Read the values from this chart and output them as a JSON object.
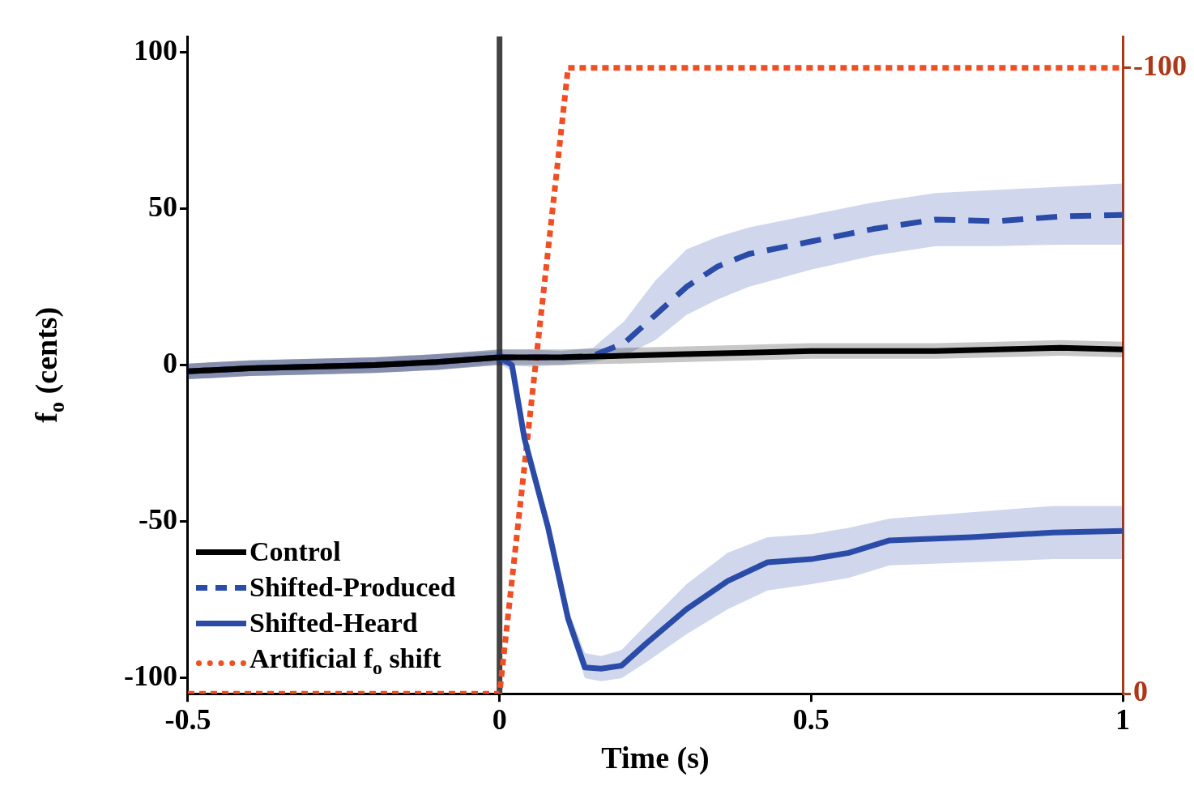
{
  "chart_data": {
    "type": "line",
    "xlabel": "Time (s)",
    "ylabel": "f$_{o}$ (cents)",
    "xlim": [
      -0.5,
      1
    ],
    "xticks": [
      -0.5,
      0,
      0.5,
      1
    ],
    "ylim": [
      -105,
      105
    ],
    "yticks": [
      -100,
      -50,
      0,
      50,
      100
    ],
    "y2lim": [
      0,
      -105
    ],
    "y2ticks": [
      -100,
      0
    ],
    "grid": false,
    "legend": "bottom left",
    "marker": "none",
    "ref_lines": [
      {
        "axis": "x",
        "value": 0,
        "color": "#444444"
      }
    ],
    "series": [
      {
        "name": "Control",
        "color": "#000000",
        "line_style": "solid",
        "x": [
          -0.5,
          -0.4,
          -0.3,
          -0.2,
          -0.1,
          0,
          0.1,
          0.2,
          0.3,
          0.4,
          0.5,
          0.6,
          0.7,
          0.8,
          0.9,
          1
        ],
        "values": [
          -2,
          -1,
          -0.5,
          0,
          1,
          2.5,
          2.5,
          3,
          3.5,
          4,
          4.5,
          4.5,
          4.5,
          5,
          5.5,
          5
        ],
        "upper": [
          0.5,
          1.5,
          2,
          2.5,
          3.5,
          5,
          5,
          5.5,
          6,
          6.5,
          7,
          7,
          7,
          7.5,
          8,
          7.5
        ],
        "lower": [
          -4.5,
          -3.5,
          -3,
          -2.5,
          -1.5,
          0,
          0,
          0.5,
          1,
          1.5,
          2,
          2,
          2,
          2.5,
          3,
          2.5
        ]
      },
      {
        "name": "Shifted-Produced",
        "color": "#2b4ba8",
        "line_style": "dashed",
        "x": [
          -0.5,
          -0.4,
          -0.3,
          -0.2,
          -0.1,
          0,
          0.05,
          0.1,
          0.15,
          0.2,
          0.25,
          0.3,
          0.35,
          0.4,
          0.5,
          0.6,
          0.7,
          0.8,
          0.9,
          1
        ],
        "values": [
          -2,
          -1,
          -0.5,
          0,
          1,
          2.5,
          2.5,
          2.5,
          3,
          7,
          16,
          25,
          31.5,
          35.5,
          39.5,
          43.5,
          46.5,
          46,
          47.5,
          48
        ],
        "upper": [
          0.5,
          1.5,
          2,
          2.5,
          3.5,
          5,
          5,
          4.5,
          5.5,
          14,
          27,
          37,
          41,
          44,
          48,
          52,
          55,
          56,
          57,
          58
        ],
        "lower": [
          -4.5,
          -3.5,
          -3,
          -2.5,
          -1.5,
          0,
          -0.5,
          0,
          1,
          3,
          8,
          16,
          21,
          25,
          30.5,
          35,
          38,
          38,
          38.5,
          38.5
        ]
      },
      {
        "name": "Shifted-Heard",
        "color": "#2b4ba8",
        "line_style": "solid",
        "x": [
          -0.5,
          -0.4,
          -0.3,
          -0.2,
          -0.1,
          0,
          0.02,
          0.04,
          0.078,
          0.11,
          0.137,
          0.163,
          0.196,
          0.235,
          0.3,
          0.366,
          0.43,
          0.5,
          0.56,
          0.626,
          0.757,
          0.888,
          1
        ],
        "values": [
          -2,
          -1,
          -0.5,
          0,
          1,
          2.5,
          0,
          -23.5,
          -52,
          -81,
          -96.6,
          -97,
          -96,
          -89,
          -78,
          -69,
          -63,
          -62,
          -60,
          -56,
          -55,
          -53.5,
          -53
        ],
        "upper": [
          0.5,
          1.5,
          2,
          2.5,
          3.5,
          4.5,
          2,
          -21,
          -49,
          -78,
          -92,
          -93,
          -91,
          -83,
          -70,
          -60,
          -55,
          -54,
          -52,
          -49,
          -47,
          -45,
          -45
        ],
        "lower": [
          -4.5,
          -3.5,
          -3,
          -2.5,
          -1.5,
          0.5,
          -2,
          -26,
          -55,
          -84,
          -100,
          -101,
          -100,
          -95,
          -86,
          -78,
          -72,
          -70,
          -68,
          -64,
          -63,
          -62,
          -62
        ]
      },
      {
        "name": "Artificial f$_{o}$ shift",
        "color": "#f04e23",
        "line_style": "dotted",
        "axis": "y2",
        "x": [
          -0.5,
          0,
          0.11,
          1
        ],
        "values": [
          0,
          0,
          -100,
          -100
        ]
      }
    ]
  }
}
